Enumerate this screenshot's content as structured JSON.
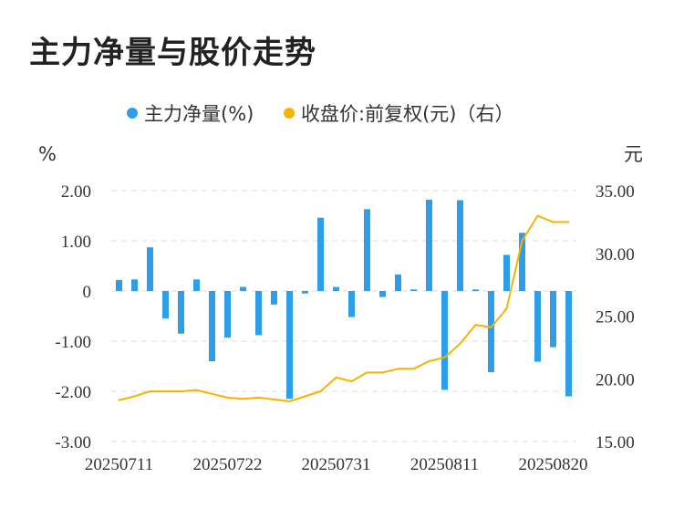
{
  "title": "主力净量与股价走势",
  "chart_data": {
    "type": "bar+line",
    "legend": [
      {
        "name": "主力净量(%)",
        "color": "#2f9ee8"
      },
      {
        "name": "收盘价:前复权(元)（右）",
        "color": "#f4b400"
      }
    ],
    "y_left": {
      "unit": "%",
      "min": -3,
      "max": 2,
      "ticks": [
        "2.00",
        "1.00",
        "0",
        "-1.00",
        "-2.00",
        "-3.00"
      ]
    },
    "y_right": {
      "unit": "元",
      "min": 15,
      "max": 35,
      "ticks": [
        "35.00",
        "30.00",
        "25.00",
        "20.00",
        "15.00"
      ]
    },
    "x_tick_labels": [
      {
        "index": 0,
        "label": "20250711"
      },
      {
        "index": 7,
        "label": "20250722"
      },
      {
        "index": 14,
        "label": "20250731"
      },
      {
        "index": 21,
        "label": "20250811"
      },
      {
        "index": 28,
        "label": "20250820"
      }
    ],
    "bars": [
      0.22,
      0.23,
      0.87,
      -0.55,
      -0.85,
      0.23,
      -1.4,
      -0.93,
      0.08,
      -0.88,
      -0.27,
      -2.15,
      -0.05,
      1.46,
      0.08,
      -0.52,
      1.63,
      -0.12,
      0.33,
      0.03,
      1.82,
      -1.97,
      1.81,
      0.03,
      -1.62,
      0.72,
      1.16,
      -1.41,
      -1.12,
      -2.1
    ],
    "price": [
      18.3,
      18.6,
      19.0,
      19.0,
      19.0,
      19.1,
      18.8,
      18.5,
      18.4,
      18.5,
      18.35,
      18.2,
      18.6,
      19.0,
      20.1,
      19.8,
      20.5,
      20.5,
      20.8,
      20.8,
      21.4,
      21.7,
      22.8,
      24.3,
      24.1,
      25.6,
      31.0,
      33.0,
      32.5,
      32.5
    ],
    "bar_color": "#2f9ee8",
    "line_color": "#f4b400"
  }
}
